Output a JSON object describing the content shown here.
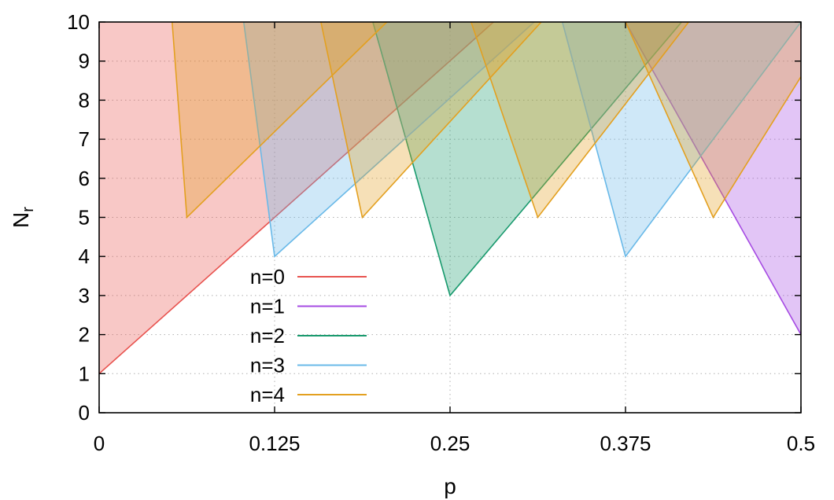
{
  "chart_data": {
    "type": "area",
    "xlabel": "p",
    "ylabel_main": "N",
    "ylabel_sub": "r",
    "xlim": [
      0,
      0.5
    ],
    "ylim": [
      0,
      10
    ],
    "grid": true,
    "legend_position": "bottom-left inside",
    "x_ticks": [
      {
        "value": 0,
        "label": "0"
      },
      {
        "value": 0.125,
        "label": "0.125"
      },
      {
        "value": 0.25,
        "label": "0.25"
      },
      {
        "value": 0.375,
        "label": "0.375"
      },
      {
        "value": 0.5,
        "label": "0.5"
      }
    ],
    "y_ticks": [
      {
        "value": 0,
        "label": "0"
      },
      {
        "value": 1,
        "label": "1"
      },
      {
        "value": 2,
        "label": "2"
      },
      {
        "value": 3,
        "label": "3"
      },
      {
        "value": 4,
        "label": "4"
      },
      {
        "value": 5,
        "label": "5"
      },
      {
        "value": 6,
        "label": "6"
      },
      {
        "value": 7,
        "label": "7"
      },
      {
        "value": 8,
        "label": "8"
      },
      {
        "value": 9,
        "label": "9"
      },
      {
        "value": 10,
        "label": "10"
      }
    ],
    "series": [
      {
        "name": "n=0",
        "color": "#e8534f",
        "regions": [
          {
            "boundary": [
              [
                0,
                1
              ],
              [
                0.125,
                5
              ],
              [
                0.281,
                10
              ]
            ]
          }
        ]
      },
      {
        "name": "n=1",
        "color": "#a64be3",
        "regions": [
          {
            "boundary": [
              [
                0.375,
                10
              ],
              [
                0.5,
                2
              ]
            ]
          }
        ]
      },
      {
        "name": "n=2",
        "color": "#199a6e",
        "regions": [
          {
            "boundary": [
              [
                0.195,
                10
              ],
              [
                0.25,
                3
              ],
              [
                0.415,
                10
              ]
            ]
          }
        ]
      },
      {
        "name": "n=3",
        "color": "#69b9e8",
        "regions": [
          {
            "boundary": [
              [
                0.103,
                10
              ],
              [
                0.125,
                4
              ],
              [
                0.31,
                10
              ]
            ]
          },
          {
            "boundary": [
              [
                0.33,
                10
              ],
              [
                0.375,
                4
              ],
              [
                0.5,
                10
              ]
            ]
          }
        ]
      },
      {
        "name": "n=4",
        "color": "#e3a020",
        "regions": [
          {
            "boundary": [
              [
                0.052,
                10
              ],
              [
                0.0625,
                5
              ],
              [
                0.205,
                10
              ]
            ]
          },
          {
            "boundary": [
              [
                0.158,
                10
              ],
              [
                0.1875,
                5
              ],
              [
                0.315,
                10
              ]
            ]
          },
          {
            "boundary": [
              [
                0.265,
                10
              ],
              [
                0.3125,
                5
              ],
              [
                0.42,
                10
              ]
            ]
          },
          {
            "boundary": [
              [
                0.375,
                10
              ],
              [
                0.4375,
                5
              ],
              [
                0.5,
                8.6
              ]
            ]
          }
        ]
      }
    ]
  }
}
